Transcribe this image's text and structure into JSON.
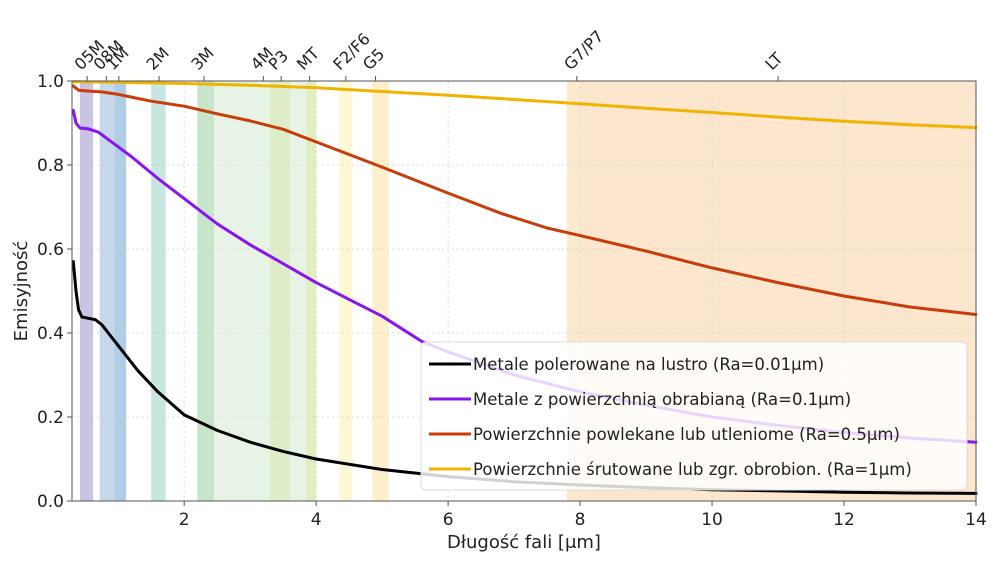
{
  "chart_data": {
    "type": "line",
    "title": "",
    "xlabel": "Długość fali [μm]",
    "ylabel": "Emisyjność",
    "xlim": [
      0.3,
      14
    ],
    "ylim": [
      0.0,
      1.0
    ],
    "xticks": [
      2,
      4,
      6,
      8,
      10,
      12,
      14
    ],
    "xtick_labels": [
      "2",
      "4",
      "6",
      "8",
      "10",
      "12",
      "14"
    ],
    "yticks": [
      0.0,
      0.2,
      0.4,
      0.6,
      0.8,
      1.0
    ],
    "ytick_labels": [
      "0.0",
      "0.2",
      "0.4",
      "0.6",
      "0.8",
      "1.0"
    ],
    "grid": true,
    "legend_position": "lower-right",
    "series": [
      {
        "name": "Metale polerowane na lustro (Ra=0.01μm)",
        "color": "#000000",
        "points": [
          [
            0.32,
            0.57
          ],
          [
            0.36,
            0.5
          ],
          [
            0.4,
            0.455
          ],
          [
            0.45,
            0.438
          ],
          [
            0.55,
            0.435
          ],
          [
            0.65,
            0.432
          ],
          [
            0.75,
            0.42
          ],
          [
            0.9,
            0.39
          ],
          [
            1.05,
            0.36
          ],
          [
            1.3,
            0.31
          ],
          [
            1.6,
            0.26
          ],
          [
            2.0,
            0.205
          ],
          [
            2.5,
            0.168
          ],
          [
            3.0,
            0.14
          ],
          [
            3.5,
            0.118
          ],
          [
            4.0,
            0.1
          ],
          [
            5.0,
            0.075
          ],
          [
            6.0,
            0.058
          ],
          [
            7.0,
            0.046
          ],
          [
            8.0,
            0.038
          ],
          [
            9.0,
            0.032
          ],
          [
            10.0,
            0.027
          ],
          [
            11.0,
            0.024
          ],
          [
            12.0,
            0.021
          ],
          [
            13.0,
            0.019
          ],
          [
            14.0,
            0.018
          ]
        ]
      },
      {
        "name": "Metale z powierzchnią obrabianą (Ra=0.1μm)",
        "color": "#8a14f0",
        "points": [
          [
            0.32,
            0.93
          ],
          [
            0.36,
            0.9
          ],
          [
            0.42,
            0.888
          ],
          [
            0.55,
            0.886
          ],
          [
            0.7,
            0.878
          ],
          [
            0.9,
            0.855
          ],
          [
            1.2,
            0.82
          ],
          [
            1.6,
            0.768
          ],
          [
            2.0,
            0.72
          ],
          [
            2.5,
            0.66
          ],
          [
            3.0,
            0.61
          ],
          [
            3.5,
            0.565
          ],
          [
            4.0,
            0.52
          ],
          [
            4.5,
            0.48
          ],
          [
            5.0,
            0.44
          ],
          [
            5.6,
            0.38
          ],
          [
            6.0,
            0.355
          ],
          [
            7.0,
            0.3
          ],
          [
            8.0,
            0.26
          ],
          [
            9.0,
            0.228
          ],
          [
            10.0,
            0.2
          ],
          [
            11.0,
            0.18
          ],
          [
            12.0,
            0.163
          ],
          [
            13.0,
            0.15
          ],
          [
            14.0,
            0.14
          ]
        ]
      },
      {
        "name": "Powierzchnie powlekane lub utleniome (Ra=0.5μm)",
        "color": "#c83c0a",
        "points": [
          [
            0.32,
            0.988
          ],
          [
            0.4,
            0.978
          ],
          [
            0.55,
            0.976
          ],
          [
            0.75,
            0.974
          ],
          [
            1.0,
            0.968
          ],
          [
            1.5,
            0.952
          ],
          [
            2.0,
            0.94
          ],
          [
            2.5,
            0.922
          ],
          [
            3.0,
            0.905
          ],
          [
            3.5,
            0.885
          ],
          [
            4.0,
            0.855
          ],
          [
            4.5,
            0.825
          ],
          [
            5.0,
            0.795
          ],
          [
            6.0,
            0.733
          ],
          [
            6.8,
            0.685
          ],
          [
            7.5,
            0.65
          ],
          [
            8.0,
            0.632
          ],
          [
            9.0,
            0.595
          ],
          [
            10.0,
            0.555
          ],
          [
            11.0,
            0.52
          ],
          [
            12.0,
            0.488
          ],
          [
            13.0,
            0.462
          ],
          [
            14.0,
            0.444
          ]
        ]
      },
      {
        "name": "Powierzchnie śrutowane lub zgr. obrobion. (Ra=1μm)",
        "color": "#f0b400",
        "points": [
          [
            0.32,
            0.998
          ],
          [
            1.0,
            0.997
          ],
          [
            2.0,
            0.994
          ],
          [
            3.0,
            0.99
          ],
          [
            4.0,
            0.984
          ],
          [
            5.0,
            0.975
          ],
          [
            6.0,
            0.966
          ],
          [
            7.0,
            0.956
          ],
          [
            8.0,
            0.946
          ],
          [
            9.0,
            0.935
          ],
          [
            10.0,
            0.925
          ],
          [
            11.0,
            0.914
          ],
          [
            12.0,
            0.904
          ],
          [
            13.0,
            0.896
          ],
          [
            14.0,
            0.889
          ]
        ]
      }
    ],
    "bands": [
      {
        "label": "05M",
        "label_at": 0.53,
        "range": [
          0.42,
          0.62
        ],
        "color": "#7b68b5",
        "opacity": 0.4
      },
      {
        "label": "08M",
        "label_at": 0.82,
        "range": [
          0.72,
          1.12
        ],
        "color": "#5b8cc4",
        "opacity": 0.35
      },
      {
        "label": "1M",
        "label_at": 1.01,
        "range": [
          0.95,
          1.12
        ],
        "color": "#6bb4d6",
        "opacity": 0.25
      },
      {
        "label": "2M",
        "label_at": 1.62,
        "range": [
          1.5,
          1.72
        ],
        "color": "#5fb8a8",
        "opacity": 0.35
      },
      {
        "label": "3M",
        "label_at": 2.3,
        "range": [
          2.2,
          2.45
        ],
        "color": "#7cc49a",
        "opacity": 0.35
      },
      {
        "label": "4M",
        "label_at": 3.2,
        "range": [
          2.2,
          4.0
        ],
        "color": "#a8d8a0",
        "opacity": 0.28
      },
      {
        "label": "P3",
        "label_at": 3.47,
        "range": [
          3.3,
          3.6
        ],
        "color": "#c8e090",
        "opacity": 0.35
      },
      {
        "label": "MT",
        "label_at": 3.9,
        "range": [
          3.85,
          4.0
        ],
        "color": "#d8e890",
        "opacity": 0.45
      },
      {
        "label": "F2/F6",
        "label_at": 4.45,
        "range": [
          4.35,
          4.55
        ],
        "color": "#fbf3b0",
        "opacity": 0.55
      },
      {
        "label": "G5",
        "label_at": 4.9,
        "range": [
          4.85,
          5.1
        ],
        "color": "#f8e4a0",
        "opacity": 0.55
      },
      {
        "label": "G7/P7",
        "label_at": 7.95,
        "range": [
          7.8,
          8.0
        ],
        "color": "#f8dcae",
        "opacity": 0.6
      },
      {
        "label": "LT",
        "label_at": 11.0,
        "range": [
          8.0,
          14.0
        ],
        "color": "#fbd5ad",
        "opacity": 0.6
      }
    ]
  }
}
